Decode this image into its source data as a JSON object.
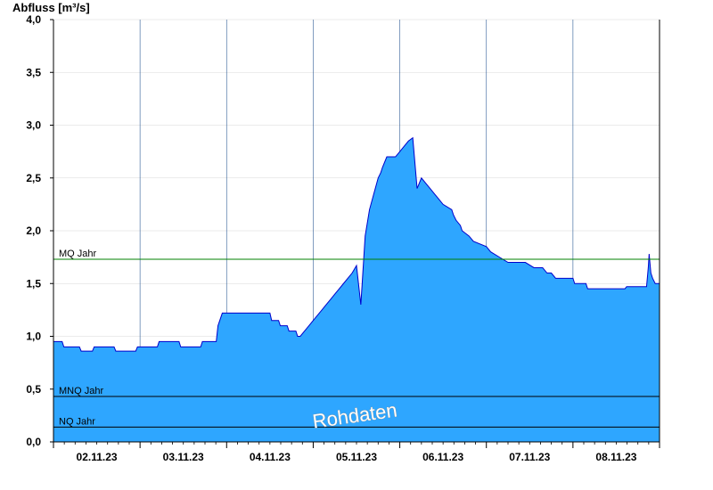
{
  "chart_data": {
    "type": "area",
    "title": "",
    "ylabel": "Abfluss [m³/s]",
    "xlabel": "",
    "ylim": [
      0,
      4.0
    ],
    "yticks": [
      {
        "value": 0.0,
        "label": "0,0"
      },
      {
        "value": 0.5,
        "label": "0,5"
      },
      {
        "value": 1.0,
        "label": "1,0"
      },
      {
        "value": 1.5,
        "label": "1,5"
      },
      {
        "value": 2.0,
        "label": "2,0"
      },
      {
        "value": 2.5,
        "label": "2,5"
      },
      {
        "value": 3.0,
        "label": "3,0"
      },
      {
        "value": 3.5,
        "label": "3,5"
      },
      {
        "value": 4.0,
        "label": "4,0"
      }
    ],
    "xlim": [
      0,
      7.0
    ],
    "xticks": [
      {
        "value": 0.5,
        "label": "02.11.23"
      },
      {
        "value": 1.5,
        "label": "03.11.23"
      },
      {
        "value": 2.5,
        "label": "04.11.23"
      },
      {
        "value": 3.5,
        "label": "05.11.23"
      },
      {
        "value": 4.5,
        "label": "06.11.23"
      },
      {
        "value": 5.5,
        "label": "07.11.23"
      },
      {
        "value": 6.5,
        "label": "08.11.23"
      }
    ],
    "grid": true,
    "fill_color": "#2ea6ff",
    "line_color": "#0000cc",
    "series": [
      {
        "x": [
          0.0,
          0.1,
          0.12,
          0.3,
          0.32,
          0.45,
          0.47,
          0.7,
          0.72,
          0.95,
          0.97,
          1.2,
          1.22,
          1.45,
          1.47,
          1.7,
          1.72,
          1.88,
          1.9,
          1.9,
          1.95,
          2.5,
          2.52,
          2.6,
          2.62,
          2.7,
          2.72,
          2.8,
          2.82,
          2.85,
          2.9,
          2.95,
          3.0,
          3.05,
          3.1,
          3.15,
          3.2,
          3.25,
          3.3,
          3.35,
          3.4,
          3.45,
          3.5,
          3.55,
          3.6,
          3.65,
          3.7,
          3.75,
          3.78,
          3.8,
          3.8,
          3.85,
          3.9,
          3.95,
          4.0,
          4.05,
          4.1,
          4.15,
          4.2,
          4.25,
          4.3,
          4.35,
          4.4,
          4.45,
          4.5,
          4.6,
          4.62,
          4.62,
          4.65,
          4.65,
          4.7,
          4.72,
          4.8,
          4.85,
          5.0,
          5.05,
          5.15,
          5.25,
          5.35,
          5.45,
          5.55,
          5.65,
          5.7,
          5.75,
          5.8,
          5.82,
          6.0,
          6.02,
          6.15,
          6.17,
          6.3,
          6.32,
          6.6,
          6.62,
          6.85,
          6.87,
          6.88,
          6.9,
          6.92,
          6.95,
          7.0
        ],
        "y": [
          0.95,
          0.95,
          0.9,
          0.9,
          0.86,
          0.86,
          0.9,
          0.9,
          0.86,
          0.86,
          0.9,
          0.9,
          0.95,
          0.95,
          0.9,
          0.9,
          0.95,
          0.95,
          1.1,
          1.1,
          1.22,
          1.22,
          1.15,
          1.15,
          1.1,
          1.1,
          1.05,
          1.05,
          1.0,
          1.0,
          1.05,
          1.1,
          1.15,
          1.2,
          1.25,
          1.3,
          1.35,
          1.4,
          1.45,
          1.5,
          1.55,
          1.6,
          1.67,
          1.3,
          1.95,
          2.2,
          2.35,
          2.5,
          2.55,
          2.6,
          2.6,
          2.7,
          2.7,
          2.7,
          2.75,
          2.8,
          2.85,
          2.88,
          2.4,
          2.5,
          2.45,
          2.4,
          2.35,
          2.3,
          2.25,
          2.2,
          2.15,
          2.15,
          2.1,
          2.1,
          2.05,
          2.0,
          1.95,
          1.9,
          1.85,
          1.8,
          1.75,
          1.7,
          1.7,
          1.7,
          1.65,
          1.65,
          1.6,
          1.6,
          1.55,
          1.55,
          1.55,
          1.5,
          1.5,
          1.45,
          1.45,
          1.45,
          1.45,
          1.47,
          1.47,
          1.65,
          1.78,
          1.6,
          1.55,
          1.5,
          1.5
        ]
      }
    ],
    "reference_lines": [
      {
        "label": "MQ Jahr",
        "value": 1.73,
        "color": "#008000"
      },
      {
        "label": "MNQ Jahr",
        "value": 0.43,
        "color": "#000000"
      },
      {
        "label": "NQ Jahr",
        "value": 0.14,
        "color": "#000000"
      }
    ],
    "watermark": "Rohdaten"
  }
}
